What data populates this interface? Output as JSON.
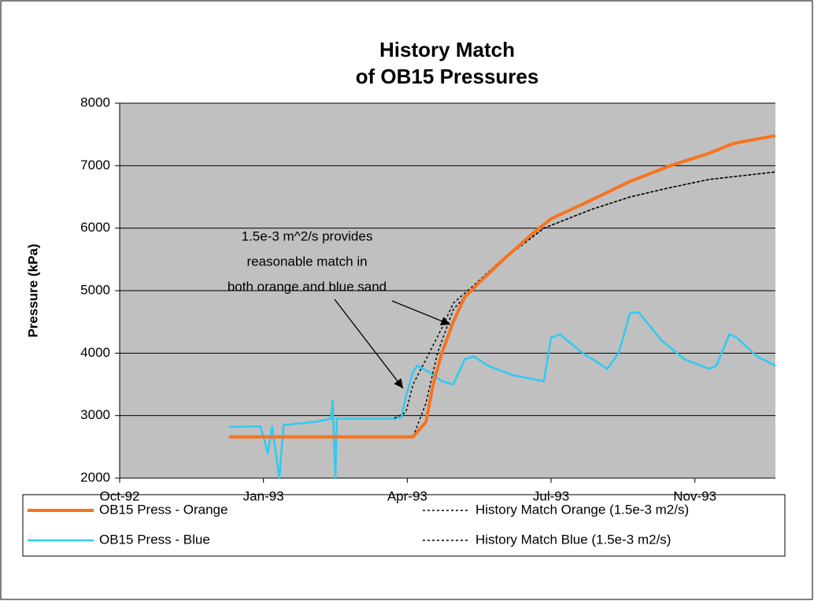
{
  "chart_data": {
    "type": "line",
    "title": [
      "History Match",
      "of OB15 Pressures"
    ],
    "ylabel": "Pressure (kPa)",
    "annotation": [
      "1.5e-3 m^2/s provides",
      "reasonable match in",
      "both orange and blue sand"
    ],
    "xlim": [
      33878,
      34334
    ],
    "xticks": [
      {
        "value": 33878,
        "label": "Oct-92"
      },
      {
        "value": 33978,
        "label": "Jan-93"
      },
      {
        "value": 34078,
        "label": "Apr-93"
      },
      {
        "value": 34178,
        "label": "Jul-93"
      },
      {
        "value": 34278,
        "label": "Nov-93"
      }
    ],
    "ylim": [
      2000,
      8000
    ],
    "yticks": [
      2000,
      3000,
      4000,
      5000,
      6000,
      7000,
      8000
    ],
    "grid": true,
    "series": [
      {
        "name": "OB15 Press - Orange",
        "color": "#f7731e",
        "style": "solid",
        "x": [
          33954,
          34082,
          34091,
          34096,
          34102,
          34110,
          34118,
          34129,
          34145,
          34167,
          34178,
          34206,
          34233,
          34261,
          34288,
          34304,
          34315,
          34334
        ],
        "values": [
          2660,
          2660,
          2900,
          3500,
          4000,
          4500,
          4900,
          5150,
          5500,
          5950,
          6150,
          6450,
          6750,
          7000,
          7200,
          7350,
          7400,
          7480
        ]
      },
      {
        "name": "History Match Orange (1.5e-3 m2/s)",
        "color": "#000000",
        "style": "dotted",
        "x": [
          34082,
          34091,
          34099,
          34110,
          34124,
          34145,
          34173,
          34206,
          34233,
          34261,
          34288,
          34334
        ],
        "values": [
          2660,
          3200,
          4000,
          4700,
          5050,
          5500,
          6000,
          6300,
          6500,
          6650,
          6780,
          6900
        ]
      },
      {
        "name": "OB15 Press - Blue",
        "color": "#2ccbf2",
        "style": "solid",
        "x": [
          33954,
          33976,
          33981,
          33984,
          33989,
          33992,
          34014,
          34025,
          34026,
          34028,
          34029,
          34052,
          34069,
          34074,
          34077,
          34082,
          34085,
          34093,
          34102,
          34110,
          34118,
          34124,
          34134,
          34151,
          34173,
          34178,
          34184,
          34200,
          34217,
          34225,
          34233,
          34239,
          34255,
          34271,
          34288,
          34293,
          34302,
          34307,
          34321,
          34334
        ],
        "values": [
          2820,
          2830,
          2400,
          2830,
          2000,
          2850,
          2900,
          2950,
          3250,
          2000,
          2950,
          2950,
          2950,
          2980,
          3300,
          3700,
          3800,
          3700,
          3550,
          3500,
          3900,
          3950,
          3800,
          3650,
          3550,
          4250,
          4300,
          4000,
          3750,
          4000,
          4650,
          4650,
          4200,
          3900,
          3750,
          3800,
          4300,
          4250,
          3950,
          3800
        ]
      },
      {
        "name": "History Match Blue (1.5e-3 m2/s)",
        "color": "#000000",
        "style": "dotted",
        "x": [
          34069,
          34077,
          34082,
          34091,
          34102,
          34110,
          34124,
          34145,
          34173,
          34206,
          34233,
          34261,
          34288,
          34334
        ],
        "values": [
          2960,
          3050,
          3500,
          3900,
          4400,
          4800,
          5080,
          5520,
          6000,
          6300,
          6500,
          6650,
          6780,
          6900
        ]
      }
    ]
  }
}
